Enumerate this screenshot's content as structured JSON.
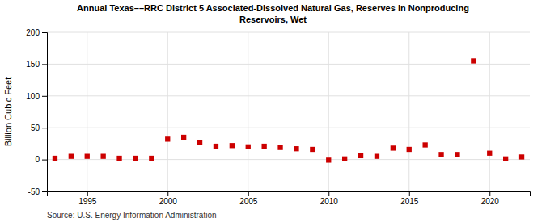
{
  "chart_data": {
    "type": "scatter",
    "title": "Annual Texas––RRC District 5 Associated-Dissolved Natural Gas, Reserves in Nonproducing\nReservoirs, Wet",
    "ylabel": "Billion Cubic Feet",
    "source": "Source: U.S. Energy Information Administration",
    "x": [
      1993,
      1994,
      1995,
      1996,
      1997,
      1998,
      1999,
      2000,
      2001,
      2002,
      2003,
      2004,
      2005,
      2006,
      2007,
      2008,
      2009,
      2010,
      2011,
      2012,
      2013,
      2014,
      2015,
      2016,
      2017,
      2018,
      2019,
      2020,
      2021,
      2022
    ],
    "values": [
      2,
      5,
      5,
      5,
      2,
      2,
      2,
      32,
      35,
      27,
      21,
      22,
      20,
      21,
      19,
      17,
      16,
      -1,
      1,
      6,
      5,
      18,
      16,
      23,
      8,
      8,
      155,
      10,
      1,
      4
    ],
    "color": "#cc0000",
    "marker": "square",
    "xlim": [
      1992.5,
      2022.5
    ],
    "xticks": [
      1995,
      2000,
      2005,
      2010,
      2015,
      2020
    ],
    "ylim": [
      -50,
      200
    ],
    "yticks": [
      -50,
      0,
      50,
      100,
      150,
      200
    ],
    "grid": true
  }
}
